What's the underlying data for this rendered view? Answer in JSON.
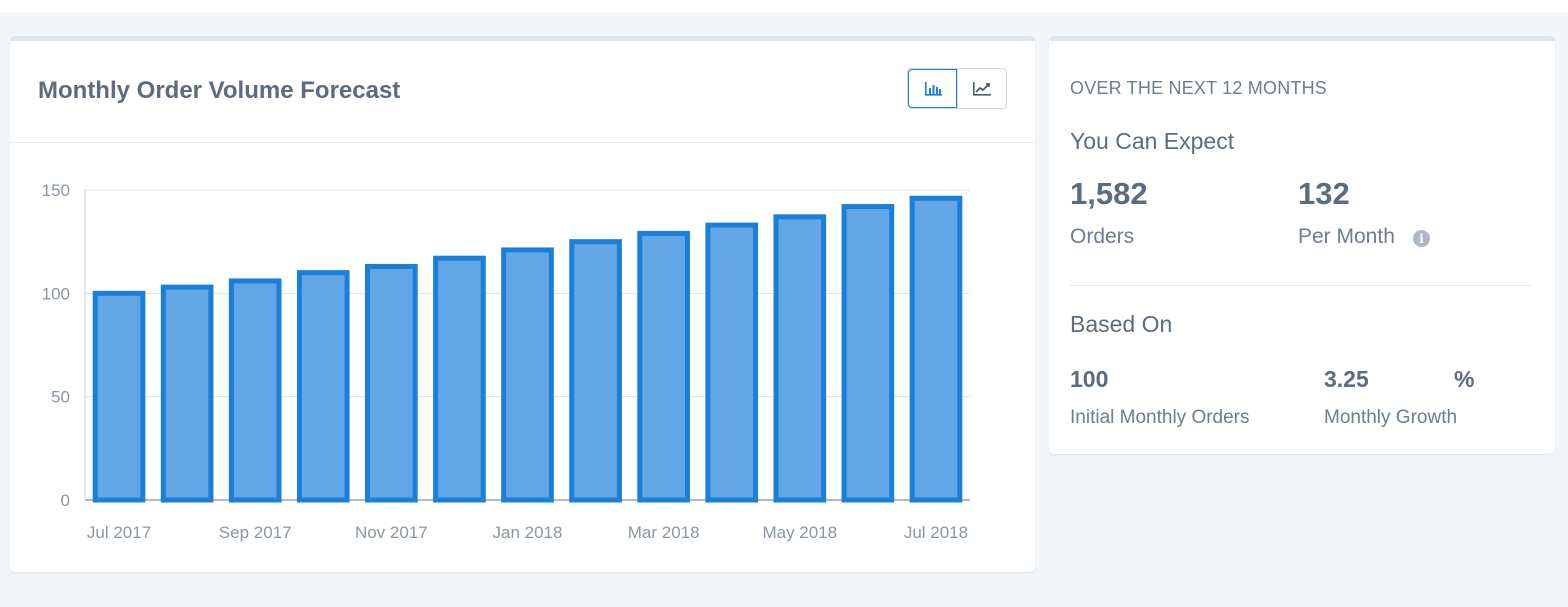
{
  "chart_card": {
    "title": "Monthly Order Volume Forecast",
    "toggle": {
      "bar_icon": "bar-chart-icon",
      "line_icon": "line-chart-icon",
      "active": "bar"
    }
  },
  "chart_data": {
    "type": "bar",
    "categories": [
      "Jul 2017",
      "Aug 2017",
      "Sep 2017",
      "Oct 2017",
      "Nov 2017",
      "Dec 2017",
      "Jan 2018",
      "Feb 2018",
      "Mar 2018",
      "Apr 2018",
      "May 2018",
      "Jun 2018",
      "Jul 2018"
    ],
    "values": [
      100,
      103,
      106,
      110,
      113,
      117,
      121,
      125,
      129,
      133,
      137,
      142,
      146
    ],
    "x_tick_labels": [
      "Jul 2017",
      "Sep 2017",
      "Nov 2017",
      "Jan 2018",
      "Mar 2018",
      "May 2018",
      "Jul 2018"
    ],
    "y_ticks": [
      0,
      50,
      100,
      150
    ],
    "ylim": [
      0,
      150
    ],
    "grid": true,
    "title": "",
    "xlabel": "",
    "ylabel": "",
    "colors": {
      "fill": "#62a6e6",
      "stroke": "#1a7fd9"
    }
  },
  "summary": {
    "heading": "OVER THE NEXT 12 MONTHS",
    "expect_title": "You Can Expect",
    "total_orders": "1,582",
    "total_orders_label": "Orders",
    "per_month": "132",
    "per_month_label": "Per Month",
    "info_icon": "info-icon",
    "based_on_title": "Based On",
    "initial_orders": "100",
    "initial_orders_label": "Initial Monthly Orders",
    "growth_value": "3.25",
    "growth_unit": "%",
    "growth_label": "Monthly Growth"
  },
  "colors": {
    "accent": "#1a7fd9",
    "background": "#f3f6f9",
    "text": "#5b6b80"
  }
}
